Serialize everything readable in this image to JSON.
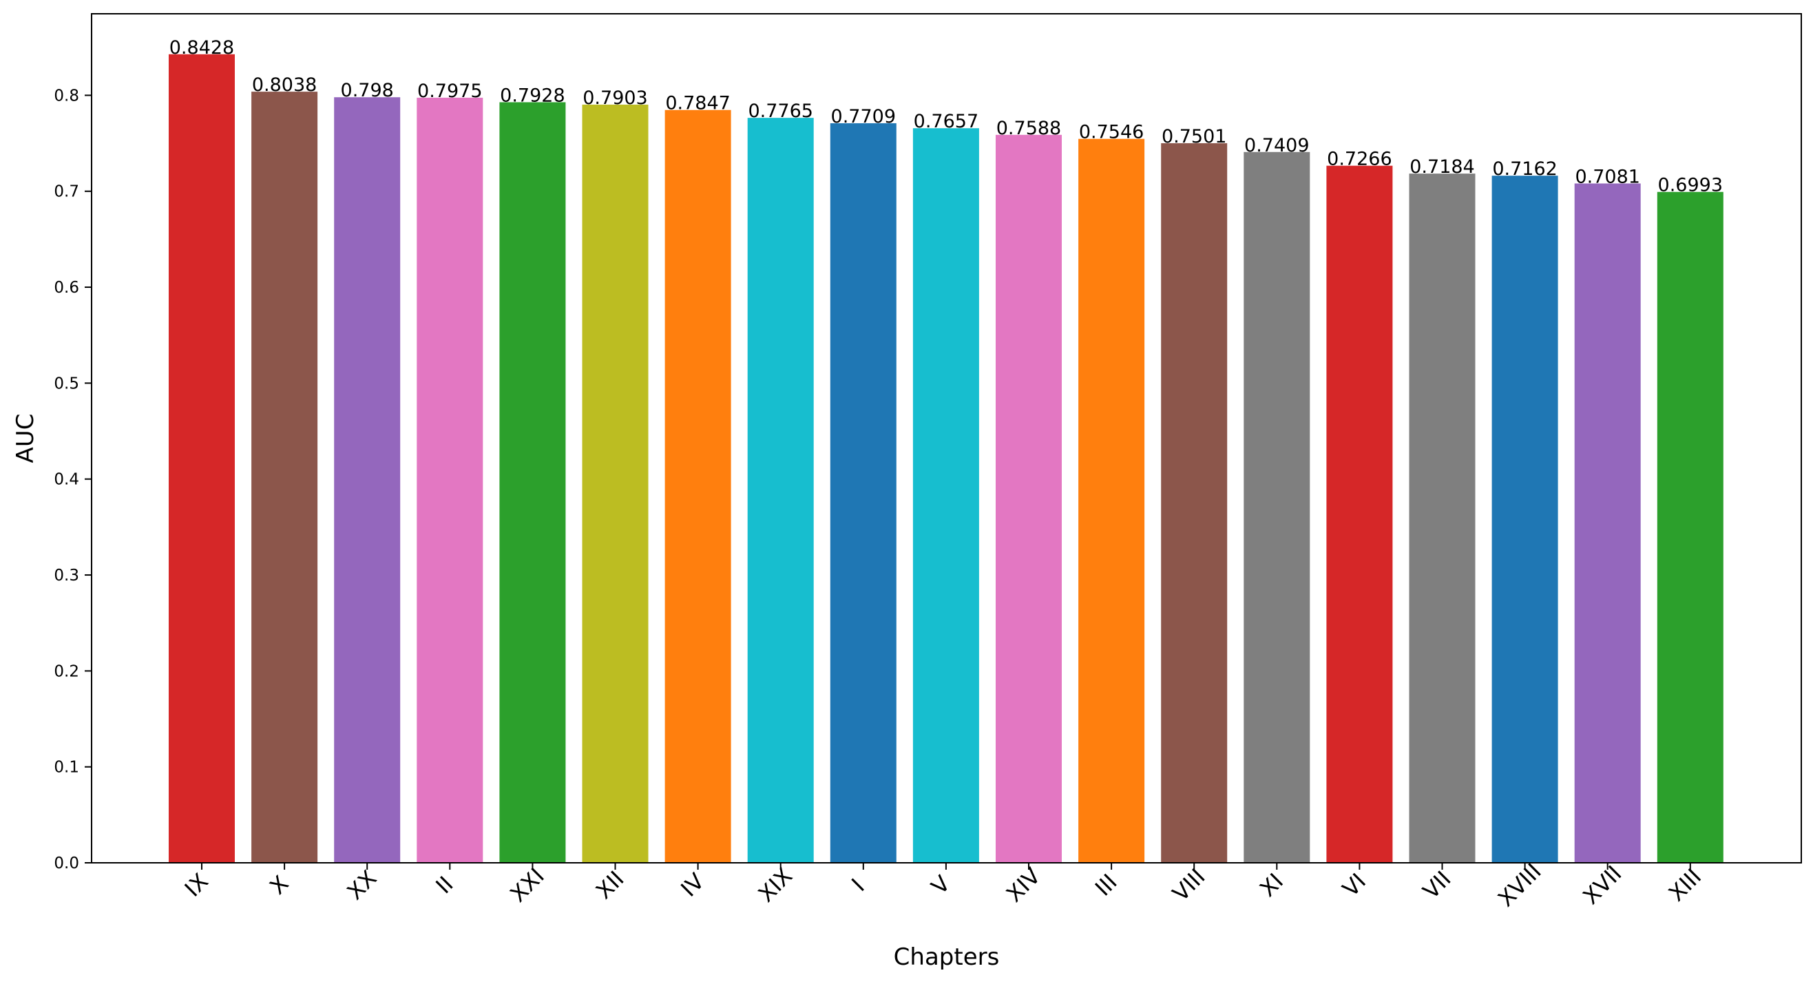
{
  "chart_data": {
    "type": "bar",
    "title": "",
    "xlabel": "Chapters",
    "ylabel": "AUC",
    "ylim": [
      0,
      0.885
    ],
    "yticks": [
      "0.0",
      "0.1",
      "0.2",
      "0.3",
      "0.4",
      "0.5",
      "0.6",
      "0.7",
      "0.8"
    ],
    "grid": false,
    "categories": [
      "IX",
      "X",
      "XX",
      "II",
      "XXI",
      "XII",
      "IV",
      "XIX",
      "I",
      "V",
      "XIV",
      "III",
      "VIII",
      "XI",
      "VI",
      "VII",
      "XVIII",
      "XVII",
      "XIII"
    ],
    "values": [
      0.8428,
      0.8038,
      0.798,
      0.7975,
      0.7928,
      0.7903,
      0.7847,
      0.7765,
      0.7709,
      0.7657,
      0.7588,
      0.7546,
      0.7501,
      0.7409,
      0.7266,
      0.7184,
      0.7162,
      0.7081,
      0.6993
    ],
    "value_labels": [
      "0.8428",
      "0.8038",
      "0.798",
      "0.7975",
      "0.7928",
      "0.7903",
      "0.7847",
      "0.7765",
      "0.7709",
      "0.7657",
      "0.7588",
      "0.7546",
      "0.7501",
      "0.7409",
      "0.7266",
      "0.7184",
      "0.7162",
      "0.7081",
      "0.6993"
    ],
    "colors": [
      "#d62728",
      "#8c564b",
      "#9467bd",
      "#e377c2",
      "#2ca02c",
      "#bcbd22",
      "#ff7f0e",
      "#17becf",
      "#1f77b4",
      "#17becf",
      "#e377c2",
      "#ff7f0e",
      "#8c564b",
      "#7f7f7f",
      "#d62728",
      "#7f7f7f",
      "#1f77b4",
      "#9467bd",
      "#2ca02c"
    ],
    "axis_color": "#000000"
  }
}
